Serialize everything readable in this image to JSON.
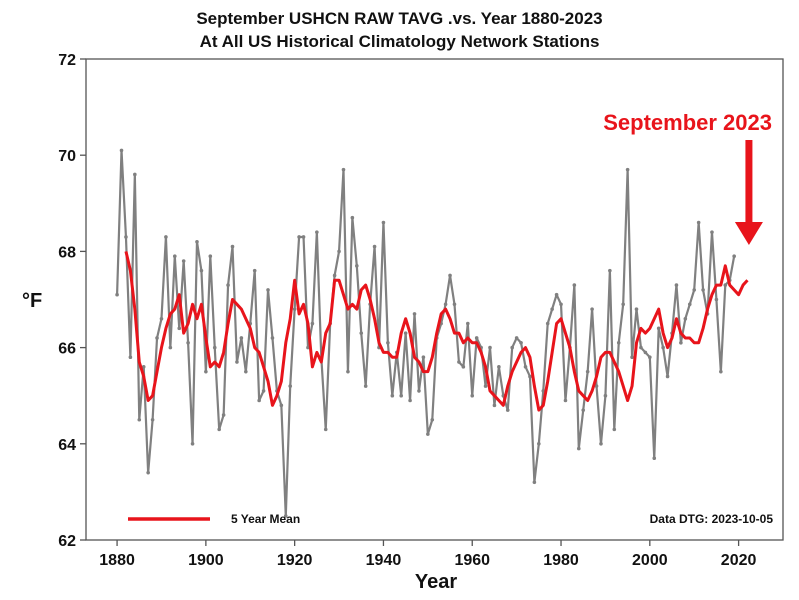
{
  "chart_data": {
    "type": "line",
    "title": "September USHCN RAW TAVG .vs. Year 1880-2023",
    "subtitle": "At All US Historical Climatology Network Stations",
    "xlabel": "Year",
    "ylabel": "°F",
    "xlim": [
      1873,
      2030
    ],
    "ylim": [
      62,
      72
    ],
    "xticks": [
      1880,
      1900,
      1920,
      1940,
      1960,
      1980,
      2000,
      2020
    ],
    "yticks": [
      62,
      64,
      66,
      68,
      70,
      72
    ],
    "grid": false,
    "legend": {
      "placement": "bottom-left",
      "entries": [
        {
          "label": "5 Year Mean",
          "color": "#e8141b"
        }
      ]
    },
    "annotation": {
      "text": "September 2023",
      "color": "#e8141b",
      "target_year": 2023
    },
    "note": "Data DTG: 2023-10-05",
    "series": [
      {
        "name": "Annual September TAVG",
        "color": "#808080",
        "x_start": 1880,
        "values": [
          67.1,
          70.1,
          68.3,
          65.8,
          69.6,
          64.5,
          65.6,
          63.4,
          64.5,
          66.2,
          66.6,
          68.3,
          66.0,
          67.9,
          66.4,
          67.8,
          66.1,
          64.0,
          68.2,
          67.6,
          65.5,
          67.9,
          66.0,
          64.3,
          64.6,
          67.3,
          68.1,
          65.7,
          66.2,
          65.5,
          66.5,
          67.6,
          64.9,
          65.1,
          67.2,
          66.2,
          65.1,
          64.8,
          62.5,
          65.2,
          66.8,
          68.3,
          68.3,
          66.0,
          66.5,
          68.4,
          65.8,
          64.3,
          66.5,
          67.5,
          68.0,
          69.7,
          65.5,
          68.7,
          67.7,
          66.3,
          65.2,
          66.9,
          68.1,
          66.0,
          68.6,
          66.1,
          65.0,
          65.9,
          65.0,
          66.3,
          64.9,
          66.7,
          65.1,
          65.8,
          64.2,
          64.5,
          66.2,
          66.5,
          66.9,
          67.5,
          66.9,
          65.7,
          65.6,
          66.5,
          65.0,
          66.2,
          66.0,
          65.2,
          66.0,
          64.8,
          65.6,
          65.0,
          64.7,
          66.0,
          66.2,
          66.1,
          65.6,
          65.4,
          63.2,
          64.0,
          65.1,
          66.5,
          66.8,
          67.1,
          66.9,
          64.9,
          66.0,
          67.3,
          63.9,
          64.7,
          65.5,
          66.8,
          65.2,
          64.0,
          65.0,
          67.6,
          64.3,
          66.1,
          66.9,
          69.7,
          65.8,
          66.8,
          66.0,
          65.9,
          65.8,
          63.7,
          66.4,
          66.0,
          65.4,
          66.3,
          67.3,
          66.1,
          66.6,
          66.9,
          67.2,
          68.6,
          67.2,
          66.7,
          68.4,
          67.0,
          65.5,
          67.3,
          67.4,
          67.9
        ]
      },
      {
        "name": "5 Year Mean",
        "color": "#e8141b",
        "x_start": 1882,
        "values": [
          68.0,
          67.6,
          66.8,
          65.7,
          65.4,
          64.9,
          65.0,
          65.5,
          66.0,
          66.4,
          66.7,
          66.8,
          67.1,
          66.3,
          66.5,
          66.9,
          66.6,
          66.9,
          66.2,
          65.6,
          65.7,
          65.6,
          65.9,
          66.5,
          67.0,
          66.9,
          66.8,
          66.6,
          66.4,
          66.0,
          65.9,
          65.6,
          65.3,
          64.8,
          65.0,
          65.3,
          66.1,
          66.6,
          67.4,
          66.7,
          66.9,
          66.5,
          65.6,
          65.9,
          65.7,
          66.3,
          66.5,
          67.4,
          67.4,
          67.1,
          66.8,
          66.9,
          66.8,
          67.2,
          67.3,
          67.0,
          66.6,
          66.1,
          65.9,
          65.9,
          65.8,
          65.8,
          66.3,
          66.6,
          66.3,
          65.8,
          65.7,
          65.5,
          65.5,
          65.8,
          66.3,
          66.7,
          66.8,
          66.6,
          66.3,
          66.3,
          66.1,
          66.2,
          66.1,
          66.1,
          65.9,
          65.6,
          65.1,
          65.0,
          64.9,
          64.8,
          65.2,
          65.5,
          65.7,
          65.9,
          66.0,
          65.8,
          65.2,
          64.7,
          64.8,
          65.3,
          65.9,
          66.5,
          66.6,
          66.3,
          66.0,
          65.5,
          65.1,
          65.0,
          64.9,
          65.1,
          65.4,
          65.8,
          65.9,
          65.9,
          65.7,
          65.5,
          65.2,
          64.9,
          65.2,
          66.1,
          66.4,
          66.3,
          66.4,
          66.6,
          66.8,
          66.3,
          66.0,
          66.2,
          66.6,
          66.3,
          66.2,
          66.2,
          66.1,
          66.1,
          66.4,
          66.8,
          67.1,
          67.3,
          67.3,
          67.7,
          67.3,
          67.2,
          67.1,
          67.3,
          67.4
        ]
      }
    ]
  }
}
